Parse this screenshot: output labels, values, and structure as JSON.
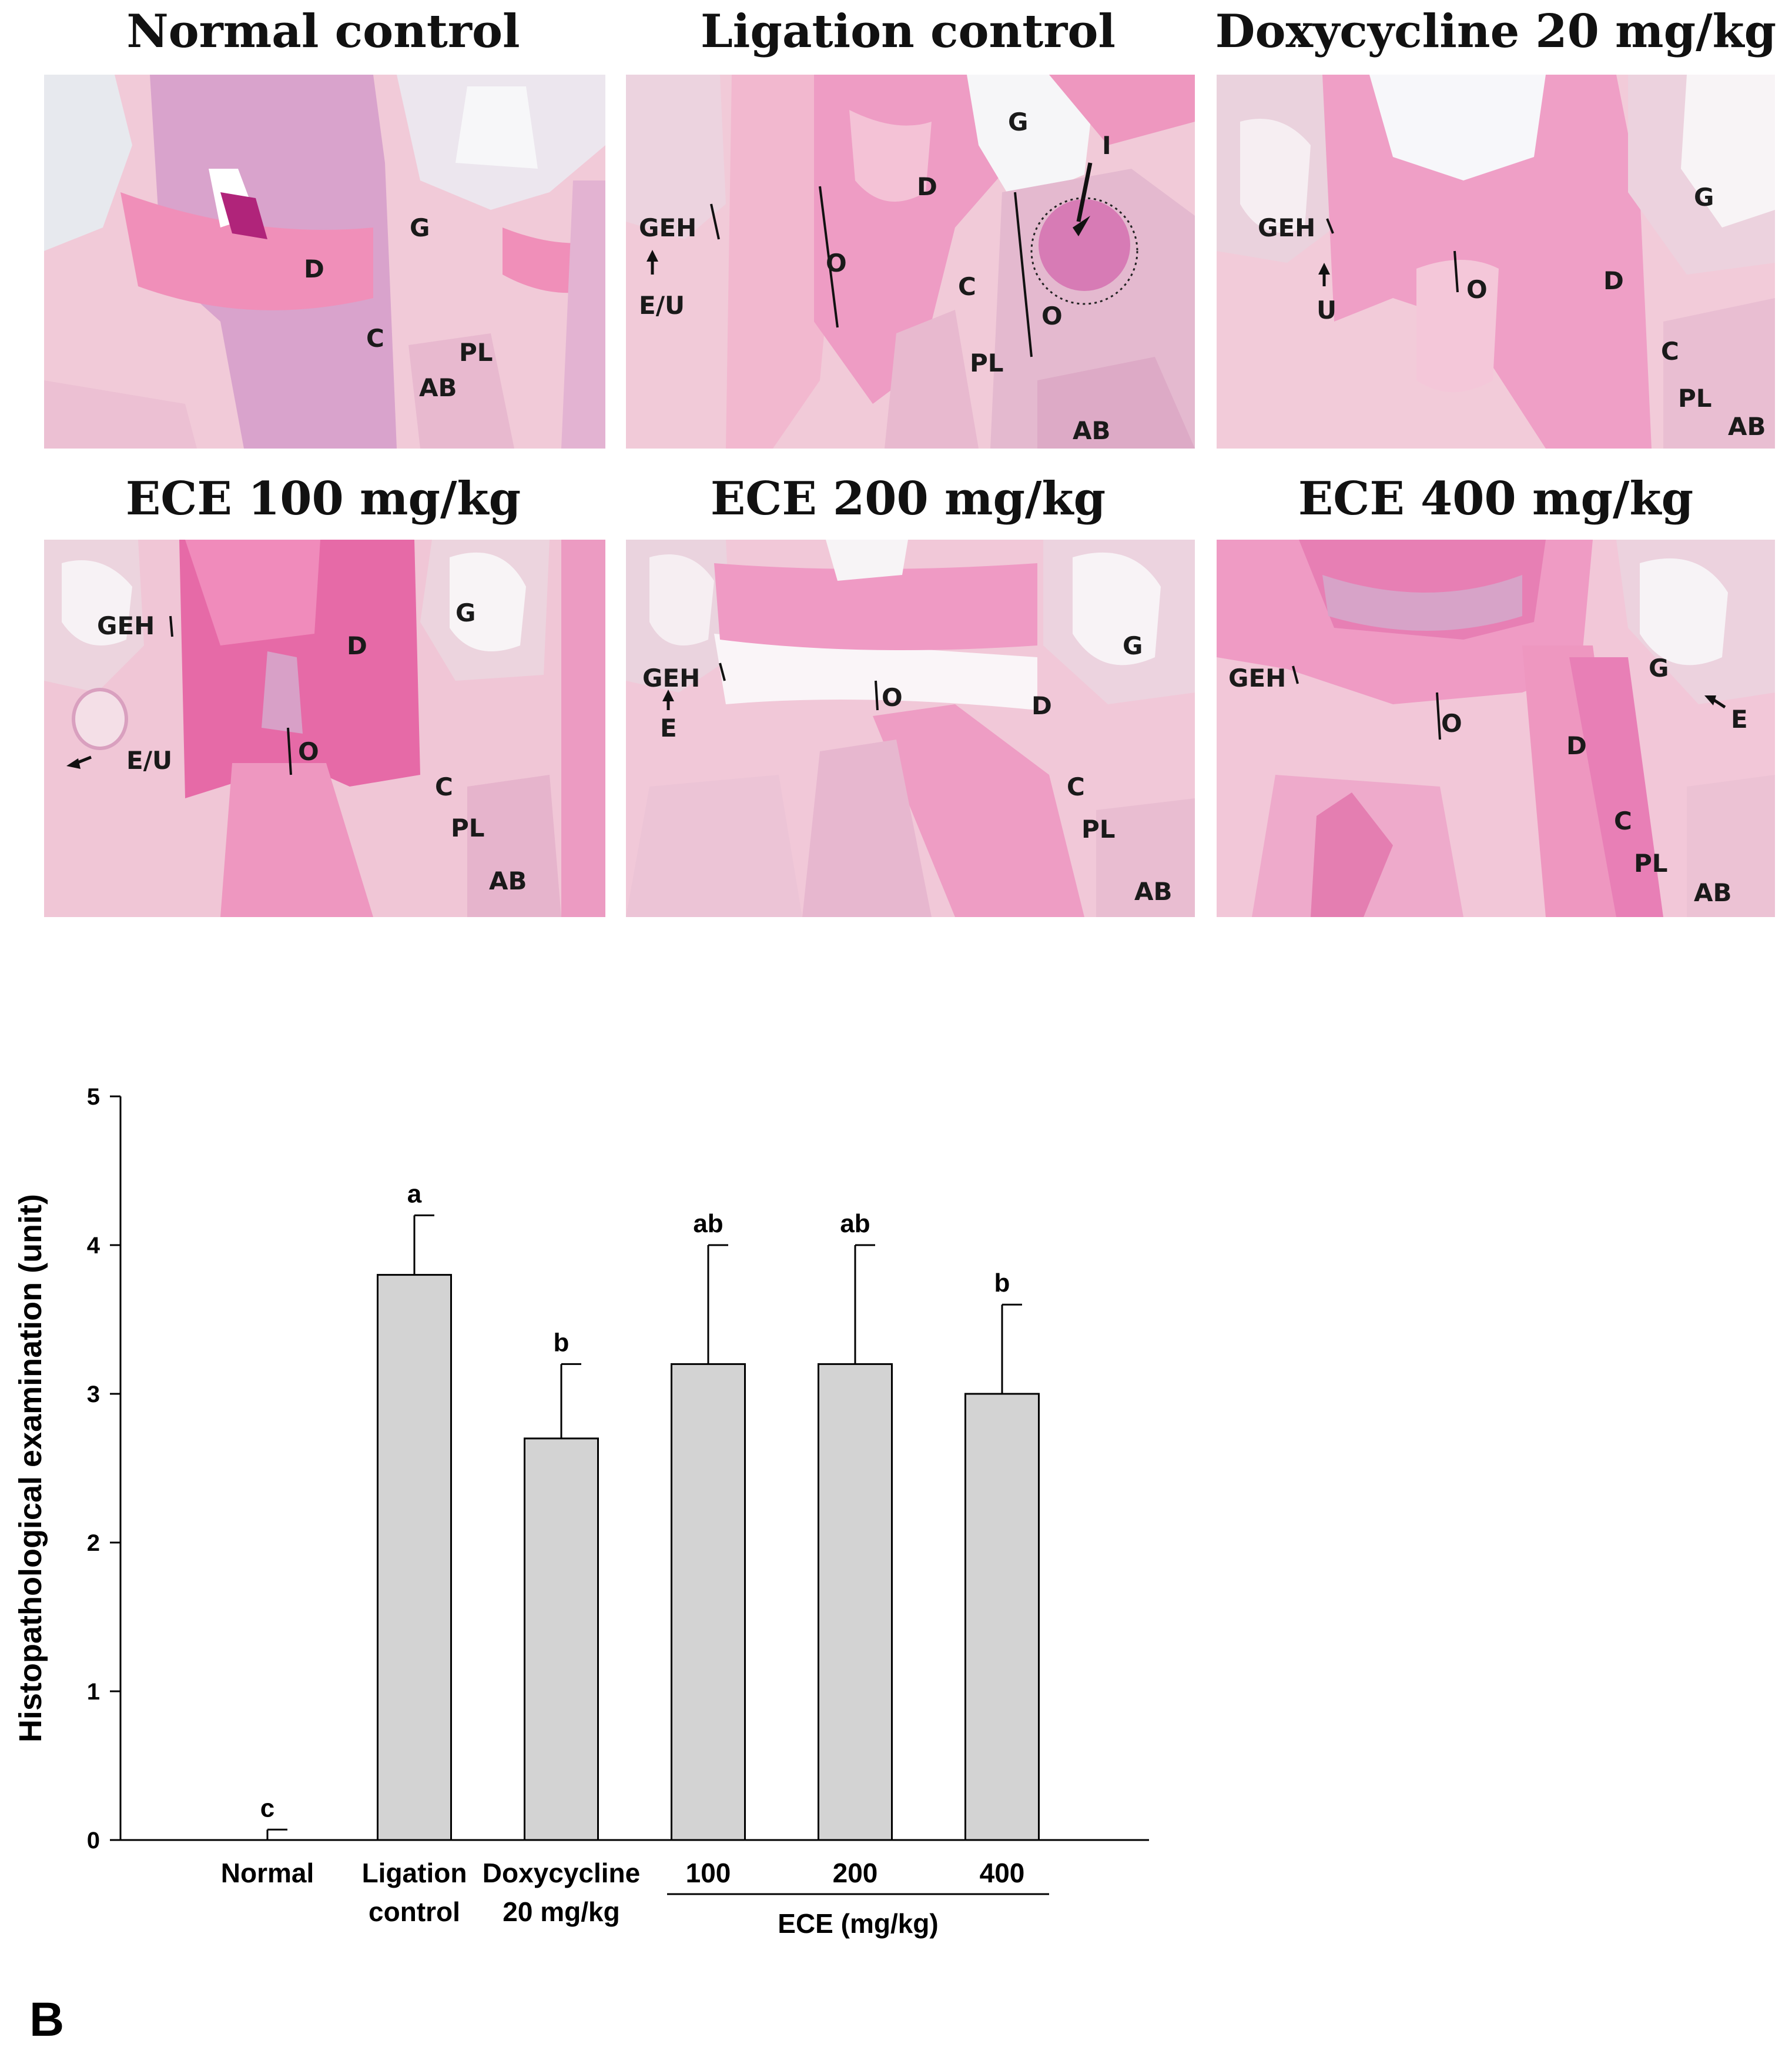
{
  "panels": [
    {
      "title": "Normal control",
      "labels": [
        "G",
        "D",
        "C",
        "PL",
        "AB"
      ]
    },
    {
      "title": "Ligation control",
      "labels": [
        "G",
        "D",
        "GEH",
        "E/U",
        "O",
        "C",
        "O",
        "PL",
        "AB",
        "I"
      ]
    },
    {
      "title": "Doxycycline 20 mg/kg",
      "labels": [
        "GEH",
        "U",
        "O",
        "G",
        "D",
        "C",
        "PL",
        "AB"
      ]
    },
    {
      "title": "ECE 100 mg/kg",
      "labels": [
        "GEH",
        "G",
        "D",
        "E/U",
        "O",
        "C",
        "PL",
        "AB"
      ]
    },
    {
      "title": "ECE 200 mg/kg",
      "labels": [
        "GEH",
        "E",
        "O",
        "G",
        "D",
        "C",
        "PL",
        "AB"
      ]
    },
    {
      "title": "ECE 400 mg/kg",
      "labels": [
        "GEH",
        "O",
        "G",
        "E",
        "D",
        "C",
        "PL",
        "AB"
      ]
    }
  ],
  "chart_data": {
    "type": "bar",
    "categories": [
      "Normal",
      "Ligation control",
      "Doxycycline 20 mg/kg",
      "100",
      "200",
      "400"
    ],
    "category_lines": [
      [
        "Normal"
      ],
      [
        "Ligation",
        "control"
      ],
      [
        "Doxycycline",
        "20 mg/kg"
      ],
      [
        "100"
      ],
      [
        "200"
      ],
      [
        "400"
      ]
    ],
    "values": [
      0.0,
      3.8,
      2.7,
      3.2,
      3.2,
      3.0
    ],
    "errors": [
      0.07,
      0.4,
      0.5,
      0.8,
      0.8,
      0.6
    ],
    "significance": [
      "c",
      "a",
      "b",
      "ab",
      "ab",
      "b"
    ],
    "group_label": "ECE (mg/kg)",
    "ylabel": "Histopathological examination (unit)",
    "ylim": [
      0,
      5
    ],
    "yticks": [
      "0",
      "1",
      "2",
      "3",
      "4",
      "5"
    ],
    "bar_color": "#d3d3d3"
  },
  "figure_label": "B"
}
